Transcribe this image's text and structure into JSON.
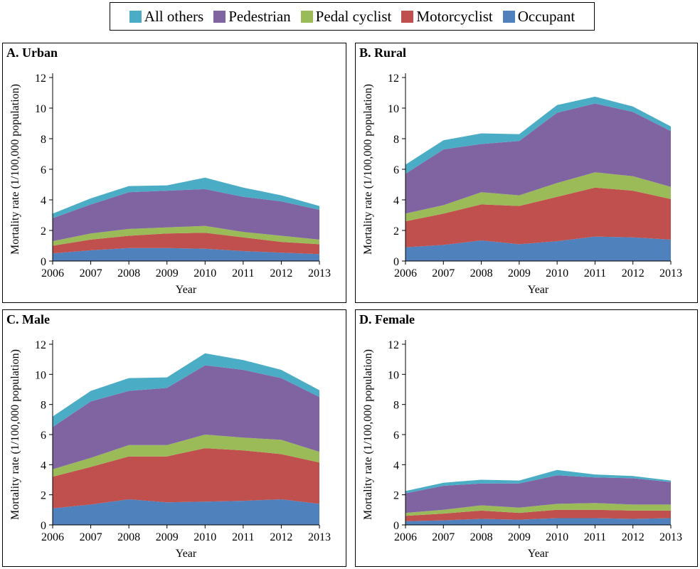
{
  "legend": {
    "items": [
      {
        "label": "All others",
        "color": "#4bacc6"
      },
      {
        "label": "Pedestrian",
        "color": "#8064a2"
      },
      {
        "label": "Pedal cyclist",
        "color": "#9bbb59"
      },
      {
        "label": "Motorcyclist",
        "color": "#c0504d"
      },
      {
        "label": "Occupant",
        "color": "#4f81bd"
      }
    ]
  },
  "chart_data": [
    {
      "type": "area",
      "title": "A. Urban",
      "xlabel": "Year",
      "ylabel": "Mortality rate (1/100,000 population)",
      "ylim": [
        0,
        12
      ],
      "yticks": [
        "0",
        "2",
        "4",
        "6",
        "8",
        "10",
        "12"
      ],
      "categories": [
        "2006",
        "2007",
        "2008",
        "2009",
        "2010",
        "2011",
        "2012",
        "2013"
      ],
      "series": [
        {
          "name": "Occupant",
          "color": "#4f81bd",
          "values": [
            0.5,
            0.7,
            0.85,
            0.85,
            0.8,
            0.65,
            0.55,
            0.45
          ]
        },
        {
          "name": "Motorcyclist",
          "color": "#c0504d",
          "values": [
            0.5,
            0.7,
            0.8,
            0.95,
            1.05,
            0.9,
            0.7,
            0.65
          ]
        },
        {
          "name": "Pedal cyclist",
          "color": "#9bbb59",
          "values": [
            0.3,
            0.4,
            0.45,
            0.4,
            0.45,
            0.35,
            0.4,
            0.3
          ]
        },
        {
          "name": "Pedestrian",
          "color": "#8064a2",
          "values": [
            1.5,
            1.9,
            2.4,
            2.4,
            2.4,
            2.3,
            2.25,
            1.95
          ]
        },
        {
          "name": "All others",
          "color": "#4bacc6",
          "values": [
            0.3,
            0.4,
            0.4,
            0.35,
            0.75,
            0.6,
            0.4,
            0.25
          ]
        }
      ]
    },
    {
      "type": "area",
      "title": "B. Rural",
      "xlabel": "Year",
      "ylabel": "Mortality rate (1/100,000 population)",
      "ylim": [
        0,
        12
      ],
      "yticks": [
        "0",
        "2",
        "4",
        "6",
        "8",
        "10",
        "12"
      ],
      "categories": [
        "2006",
        "2007",
        "2008",
        "2009",
        "2010",
        "2011",
        "2012",
        "2013"
      ],
      "series": [
        {
          "name": "Occupant",
          "color": "#4f81bd",
          "values": [
            0.9,
            1.05,
            1.35,
            1.1,
            1.3,
            1.6,
            1.55,
            1.4
          ]
        },
        {
          "name": "Motorcyclist",
          "color": "#c0504d",
          "values": [
            1.7,
            2.05,
            2.35,
            2.5,
            2.9,
            3.2,
            3.05,
            2.65
          ]
        },
        {
          "name": "Pedal cyclist",
          "color": "#9bbb59",
          "values": [
            0.5,
            0.55,
            0.8,
            0.7,
            0.9,
            1.0,
            0.95,
            0.8
          ]
        },
        {
          "name": "Pedestrian",
          "color": "#8064a2",
          "values": [
            2.6,
            3.65,
            3.15,
            3.55,
            4.6,
            4.5,
            4.2,
            3.65
          ]
        },
        {
          "name": "All others",
          "color": "#4bacc6",
          "values": [
            0.6,
            0.6,
            0.7,
            0.45,
            0.5,
            0.45,
            0.35,
            0.3
          ]
        }
      ]
    },
    {
      "type": "area",
      "title": "C. Male",
      "xlabel": "Year",
      "ylabel": "Mortality rate (1/100,000 population)",
      "ylim": [
        0,
        12
      ],
      "yticks": [
        "0",
        "2",
        "4",
        "6",
        "8",
        "10",
        "12"
      ],
      "categories": [
        "2006",
        "2007",
        "2008",
        "2009",
        "2010",
        "2011",
        "2012",
        "2013"
      ],
      "series": [
        {
          "name": "Occupant",
          "color": "#4f81bd",
          "values": [
            1.1,
            1.35,
            1.7,
            1.5,
            1.55,
            1.6,
            1.7,
            1.4
          ]
        },
        {
          "name": "Motorcyclist",
          "color": "#c0504d",
          "values": [
            2.1,
            2.5,
            2.85,
            3.05,
            3.55,
            3.35,
            3.0,
            2.75
          ]
        },
        {
          "name": "Pedal cyclist",
          "color": "#9bbb59",
          "values": [
            0.5,
            0.6,
            0.75,
            0.75,
            0.9,
            0.85,
            0.95,
            0.7
          ]
        },
        {
          "name": "Pedestrian",
          "color": "#8064a2",
          "values": [
            2.8,
            3.75,
            3.6,
            3.8,
            4.6,
            4.5,
            4.1,
            3.65
          ]
        },
        {
          "name": "All others",
          "color": "#4bacc6",
          "values": [
            0.7,
            0.7,
            0.85,
            0.7,
            0.8,
            0.65,
            0.55,
            0.45
          ]
        }
      ]
    },
    {
      "type": "area",
      "title": "D. Female",
      "xlabel": "Year",
      "ylabel": "Mortality rate (1/100,000 population)",
      "ylim": [
        0,
        12
      ],
      "yticks": [
        "0",
        "2",
        "4",
        "6",
        "8",
        "10",
        "12"
      ],
      "categories": [
        "2006",
        "2007",
        "2008",
        "2009",
        "2010",
        "2011",
        "2012",
        "2013"
      ],
      "series": [
        {
          "name": "Occupant",
          "color": "#4f81bd",
          "values": [
            0.25,
            0.3,
            0.4,
            0.35,
            0.45,
            0.45,
            0.4,
            0.45
          ]
        },
        {
          "name": "Motorcyclist",
          "color": "#c0504d",
          "values": [
            0.35,
            0.45,
            0.55,
            0.45,
            0.55,
            0.55,
            0.55,
            0.5
          ]
        },
        {
          "name": "Pedal cyclist",
          "color": "#9bbb59",
          "values": [
            0.2,
            0.25,
            0.35,
            0.35,
            0.4,
            0.45,
            0.4,
            0.4
          ]
        },
        {
          "name": "Pedestrian",
          "color": "#8064a2",
          "values": [
            1.3,
            1.6,
            1.45,
            1.6,
            1.9,
            1.7,
            1.75,
            1.5
          ]
        },
        {
          "name": "All others",
          "color": "#4bacc6",
          "values": [
            0.15,
            0.2,
            0.25,
            0.2,
            0.35,
            0.2,
            0.15,
            0.1
          ]
        }
      ]
    }
  ]
}
